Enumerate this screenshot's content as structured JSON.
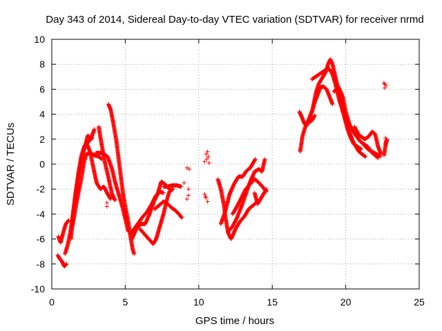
{
  "chart_data": {
    "type": "scatter",
    "title": "Day 343 of 2014, Sidereal Day-to-day VTEC variation (SDTVAR) for receiver nrmd",
    "xlabel": "GPS time / hours",
    "ylabel": "SDTVAR / TECUs",
    "xlim": [
      0,
      25
    ],
    "ylim": [
      -10,
      10
    ],
    "xticks": [
      0,
      5,
      10,
      15,
      20,
      25
    ],
    "yticks": [
      -10,
      -8,
      -6,
      -4,
      -2,
      0,
      2,
      4,
      6,
      8,
      10
    ],
    "grid": true,
    "marker": "+",
    "series": [
      {
        "name": "SDTVAR",
        "color": "#ff0000",
        "tracks": [
          [
            [
              0.45,
              -5.8
            ],
            [
              0.6,
              -6.3
            ],
            [
              0.75,
              -5.6
            ],
            [
              0.95,
              -4.8
            ],
            [
              1.15,
              -4.5
            ]
          ],
          [
            [
              0.4,
              -7.3
            ],
            [
              0.55,
              -7.6
            ],
            [
              0.7,
              -7.8
            ],
            [
              0.85,
              -8.2
            ],
            [
              1.0,
              -8.0
            ]
          ],
          [
            [
              0.9,
              -7.2
            ],
            [
              1.1,
              -6.4
            ],
            [
              1.3,
              -5.2
            ],
            [
              1.55,
              -3.0
            ],
            [
              1.8,
              -0.8
            ],
            [
              2.0,
              0.6
            ],
            [
              2.2,
              1.4
            ],
            [
              2.5,
              1.8
            ],
            [
              2.75,
              2.1
            ]
          ],
          [
            [
              1.3,
              -6.0
            ],
            [
              1.45,
              -4.2
            ],
            [
              1.6,
              -2.5
            ],
            [
              1.8,
              -1.0
            ],
            [
              2.0,
              0.2
            ],
            [
              2.25,
              1.4
            ],
            [
              2.45,
              2.3
            ],
            [
              2.65,
              2.0
            ],
            [
              2.9,
              2.8
            ]
          ],
          [
            [
              1.4,
              -5.0
            ],
            [
              1.7,
              -3.0
            ],
            [
              2.0,
              -1.2
            ],
            [
              2.2,
              0.2
            ],
            [
              2.35,
              0.8
            ],
            [
              2.6,
              0.9
            ],
            [
              2.9,
              0.7
            ],
            [
              3.2,
              0.6
            ],
            [
              3.4,
              0.4
            ]
          ],
          [
            [
              3.2,
              3.0
            ],
            [
              3.3,
              2.2
            ],
            [
              3.45,
              1.2
            ],
            [
              3.6,
              0.2
            ],
            [
              3.8,
              -0.8
            ],
            [
              3.95,
              -1.6
            ],
            [
              4.1,
              -2.4
            ],
            [
              4.3,
              -2.9
            ]
          ],
          [
            [
              2.4,
              1.6
            ],
            [
              2.6,
              1.0
            ],
            [
              2.85,
              -0.4
            ],
            [
              3.05,
              -1.5
            ],
            [
              3.3,
              -2.0
            ],
            [
              3.55,
              -1.8
            ],
            [
              3.8,
              -2.4
            ],
            [
              4.0,
              -2.8
            ]
          ],
          [
            [
              3.85,
              4.8
            ],
            [
              4.0,
              4.4
            ],
            [
              4.2,
              3.2
            ],
            [
              4.4,
              1.8
            ],
            [
              4.55,
              0.4
            ],
            [
              4.7,
              -1.0
            ],
            [
              4.85,
              -2.4
            ],
            [
              5.0,
              -3.4
            ],
            [
              5.2,
              -4.6
            ],
            [
              5.35,
              -5.8
            ],
            [
              5.5,
              -6.8
            ],
            [
              5.6,
              -7.2
            ]
          ],
          [
            [
              3.0,
              0.9
            ],
            [
              3.3,
              0.9
            ],
            [
              3.55,
              0.8
            ],
            [
              3.8,
              0.6
            ],
            [
              4.1,
              -0.4
            ],
            [
              4.3,
              -1.4
            ],
            [
              4.55,
              -2.4
            ],
            [
              4.8,
              -3.4
            ],
            [
              5.05,
              -4.6
            ],
            [
              5.2,
              -5.4
            ]
          ],
          [
            [
              5.4,
              -5.5
            ],
            [
              5.6,
              -5.2
            ],
            [
              5.9,
              -4.7
            ],
            [
              6.2,
              -4.2
            ],
            [
              6.5,
              -3.8
            ],
            [
              6.8,
              -3.2
            ],
            [
              7.05,
              -2.6
            ],
            [
              7.3,
              -2.2
            ],
            [
              7.6,
              -2.3
            ]
          ],
          [
            [
              5.45,
              -6.0
            ],
            [
              5.75,
              -5.2
            ],
            [
              6.05,
              -4.8
            ],
            [
              6.35,
              -4.8
            ],
            [
              6.65,
              -4.0
            ],
            [
              6.95,
              -3.0
            ],
            [
              7.2,
              -2.4
            ],
            [
              7.45,
              -1.4
            ],
            [
              7.7,
              -1.6
            ],
            [
              8.0,
              -2.0
            ]
          ],
          [
            [
              6.0,
              -5.2
            ],
            [
              6.3,
              -5.6
            ],
            [
              6.6,
              -6.0
            ],
            [
              6.9,
              -6.4
            ],
            [
              7.1,
              -6.0
            ],
            [
              7.35,
              -5.0
            ],
            [
              7.6,
              -4.0
            ],
            [
              7.8,
              -3.0
            ],
            [
              8.0,
              -2.2
            ],
            [
              8.25,
              -2.0
            ]
          ],
          [
            [
              7.0,
              -3.6
            ],
            [
              7.3,
              -3.3
            ],
            [
              7.6,
              -3.0
            ],
            [
              7.9,
              -3.2
            ],
            [
              8.15,
              -3.5
            ],
            [
              8.4,
              -3.7
            ],
            [
              8.65,
              -4.0
            ],
            [
              8.85,
              -4.3
            ]
          ],
          [
            [
              7.6,
              -1.8
            ],
            [
              7.9,
              -1.8
            ],
            [
              8.2,
              -1.7
            ],
            [
              8.5,
              -1.7
            ],
            [
              8.8,
              -1.8
            ]
          ],
          [
            [
              11.3,
              -1.2
            ],
            [
              11.5,
              -2.0
            ],
            [
              11.7,
              -3.2
            ],
            [
              11.85,
              -4.5
            ],
            [
              12.0,
              -5.5
            ],
            [
              12.2,
              -6.0
            ],
            [
              12.5,
              -5.2
            ],
            [
              12.8,
              -4.6
            ],
            [
              13.1,
              -4.2
            ],
            [
              13.4,
              -3.6
            ],
            [
              13.7,
              -3.3
            ],
            [
              14.0,
              -3.0
            ]
          ],
          [
            [
              11.5,
              -4.8
            ],
            [
              11.8,
              -3.8
            ],
            [
              12.1,
              -2.4
            ],
            [
              12.4,
              -1.6
            ],
            [
              12.7,
              -1.0
            ],
            [
              13.0,
              -1.0
            ],
            [
              13.2,
              -0.6
            ],
            [
              13.5,
              -0.3
            ],
            [
              13.7,
              0.1
            ],
            [
              13.85,
              0.4
            ]
          ],
          [
            [
              12.0,
              -5.4
            ],
            [
              12.3,
              -5.0
            ],
            [
              12.6,
              -4.3
            ],
            [
              12.9,
              -3.4
            ],
            [
              13.2,
              -2.4
            ],
            [
              13.5,
              -1.4
            ],
            [
              13.8,
              -0.6
            ],
            [
              14.1,
              -0.4
            ],
            [
              14.3,
              -0.6
            ],
            [
              14.5,
              0.4
            ]
          ],
          [
            [
              12.3,
              -4.0
            ],
            [
              12.6,
              -3.4
            ],
            [
              12.9,
              -2.7
            ],
            [
              13.2,
              -2.0
            ],
            [
              13.5,
              -1.6
            ],
            [
              13.8,
              -1.2
            ],
            [
              14.1,
              -1.5
            ],
            [
              14.4,
              -1.9
            ],
            [
              14.6,
              -2.2
            ]
          ],
          [
            [
              13.8,
              -2.3
            ],
            [
              14.0,
              -3.2
            ],
            [
              14.2,
              -2.8
            ],
            [
              14.4,
              -2.4
            ],
            [
              14.6,
              -2.0
            ]
          ],
          [
            [
              16.85,
              4.2
            ],
            [
              17.0,
              3.8
            ],
            [
              17.2,
              3.2
            ],
            [
              17.45,
              3.3
            ],
            [
              17.7,
              3.5
            ],
            [
              17.9,
              3.9
            ]
          ],
          [
            [
              16.9,
              1.0
            ],
            [
              17.05,
              2.2
            ],
            [
              17.25,
              3.0
            ],
            [
              17.5,
              3.6
            ],
            [
              17.75,
              4.4
            ],
            [
              17.95,
              5.6
            ],
            [
              18.15,
              6.4
            ],
            [
              18.4,
              6.9
            ],
            [
              18.65,
              7.4
            ],
            [
              18.8,
              8.0
            ],
            [
              18.95,
              8.4
            ],
            [
              19.1,
              8.0
            ],
            [
              19.3,
              7.0
            ],
            [
              19.5,
              6.0
            ],
            [
              19.7,
              5.0
            ],
            [
              19.9,
              4.0
            ],
            [
              20.1,
              3.2
            ],
            [
              20.3,
              2.4
            ],
            [
              20.5,
              1.8
            ],
            [
              20.7,
              1.4
            ],
            [
              20.9,
              1.0
            ],
            [
              21.1,
              0.8
            ],
            [
              21.35,
              0.6
            ]
          ],
          [
            [
              17.7,
              6.8
            ],
            [
              17.95,
              7.0
            ],
            [
              18.2,
              7.2
            ],
            [
              18.45,
              7.4
            ],
            [
              18.7,
              7.6
            ],
            [
              18.9,
              7.6
            ],
            [
              19.1,
              7.2
            ],
            [
              19.3,
              6.4
            ],
            [
              19.5,
              5.4
            ],
            [
              19.7,
              4.6
            ],
            [
              19.9,
              3.8
            ],
            [
              20.1,
              2.9
            ],
            [
              20.3,
              2.2
            ],
            [
              20.55,
              1.6
            ],
            [
              20.8,
              1.4
            ],
            [
              21.05,
              1.2
            ]
          ],
          [
            [
              17.3,
              3.0
            ],
            [
              17.5,
              3.6
            ],
            [
              17.7,
              4.2
            ],
            [
              17.9,
              5.0
            ],
            [
              18.1,
              5.6
            ],
            [
              18.3,
              6.2
            ],
            [
              18.5,
              6.2
            ],
            [
              18.7,
              6.0
            ],
            [
              18.9,
              5.4
            ],
            [
              19.1,
              4.8
            ]
          ],
          [
            [
              19.2,
              5.8
            ],
            [
              19.5,
              6.2
            ],
            [
              19.8,
              5.4
            ],
            [
              20.0,
              4.2
            ],
            [
              20.25,
              3.2
            ],
            [
              20.5,
              2.6
            ],
            [
              20.75,
              2.2
            ],
            [
              21.0,
              1.8
            ],
            [
              21.25,
              1.6
            ],
            [
              21.5,
              1.4
            ],
            [
              21.8,
              0.9
            ],
            [
              22.0,
              0.7
            ],
            [
              22.2,
              0.5
            ]
          ],
          [
            [
              20.6,
              3.0
            ],
            [
              20.85,
              2.4
            ],
            [
              21.05,
              2.2
            ],
            [
              21.3,
              2.0
            ],
            [
              21.55,
              2.2
            ],
            [
              21.8,
              2.6
            ],
            [
              22.0,
              2.4
            ],
            [
              22.2,
              1.4
            ],
            [
              22.4,
              0.8
            ]
          ],
          [
            [
              21.2,
              1.6
            ],
            [
              21.5,
              1.2
            ],
            [
              21.8,
              1.0
            ],
            [
              22.1,
              0.8
            ],
            [
              22.35,
              0.6
            ]
          ],
          [
            [
              22.6,
              0.7
            ],
            [
              22.7,
              1.4
            ],
            [
              22.8,
              2.0
            ],
            [
              22.7,
              1.6
            ]
          ]
        ],
        "scattered_points": [
          [
            3.75,
            -3.1
          ],
          [
            3.75,
            -3.4
          ],
          [
            9.2,
            -0.3
          ],
          [
            9.3,
            -2.0
          ],
          [
            9.3,
            -2.5
          ],
          [
            9.2,
            -2.8
          ],
          [
            9.0,
            -1.5
          ],
          [
            9.35,
            -0.4
          ],
          [
            10.4,
            0.2
          ],
          [
            10.5,
            0.8
          ],
          [
            10.6,
            1.0
          ],
          [
            10.55,
            0.4
          ],
          [
            10.65,
            0.6
          ],
          [
            10.7,
            0.1
          ],
          [
            10.4,
            -2.4
          ],
          [
            10.5,
            -2.7
          ],
          [
            10.6,
            -3.0
          ],
          [
            10.45,
            -2.6
          ],
          [
            22.65,
            6.4
          ],
          [
            22.65,
            6.1
          ],
          [
            22.75,
            6.3
          ],
          [
            22.6,
            6.5
          ],
          [
            22.7,
            2.1
          ],
          [
            22.8,
            1.8
          ]
        ]
      }
    ]
  }
}
